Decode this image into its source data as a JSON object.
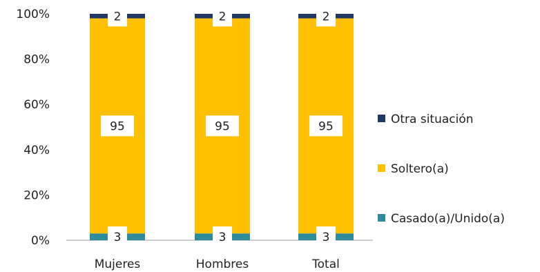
{
  "chart_data": {
    "type": "bar",
    "stacked": true,
    "percent_stacked": true,
    "categories": [
      "Mujeres",
      "Hombres",
      "Total"
    ],
    "series": [
      {
        "name": "Casado(a)/Unido(a)",
        "values": [
          3,
          3,
          3
        ],
        "color": "#2e8b9a"
      },
      {
        "name": "Soltero(a)",
        "values": [
          95,
          95,
          95
        ],
        "color": "#fec000"
      },
      {
        "name": "Otra situación",
        "values": [
          2,
          2,
          2
        ],
        "color": "#1f3864"
      }
    ],
    "y_ticks": [
      "0%",
      "20%",
      "40%",
      "60%",
      "80%",
      "100%"
    ],
    "ylim": [
      0,
      100
    ],
    "grid": false,
    "legend_position": "right",
    "title": "",
    "xlabel": "",
    "ylabel": ""
  }
}
